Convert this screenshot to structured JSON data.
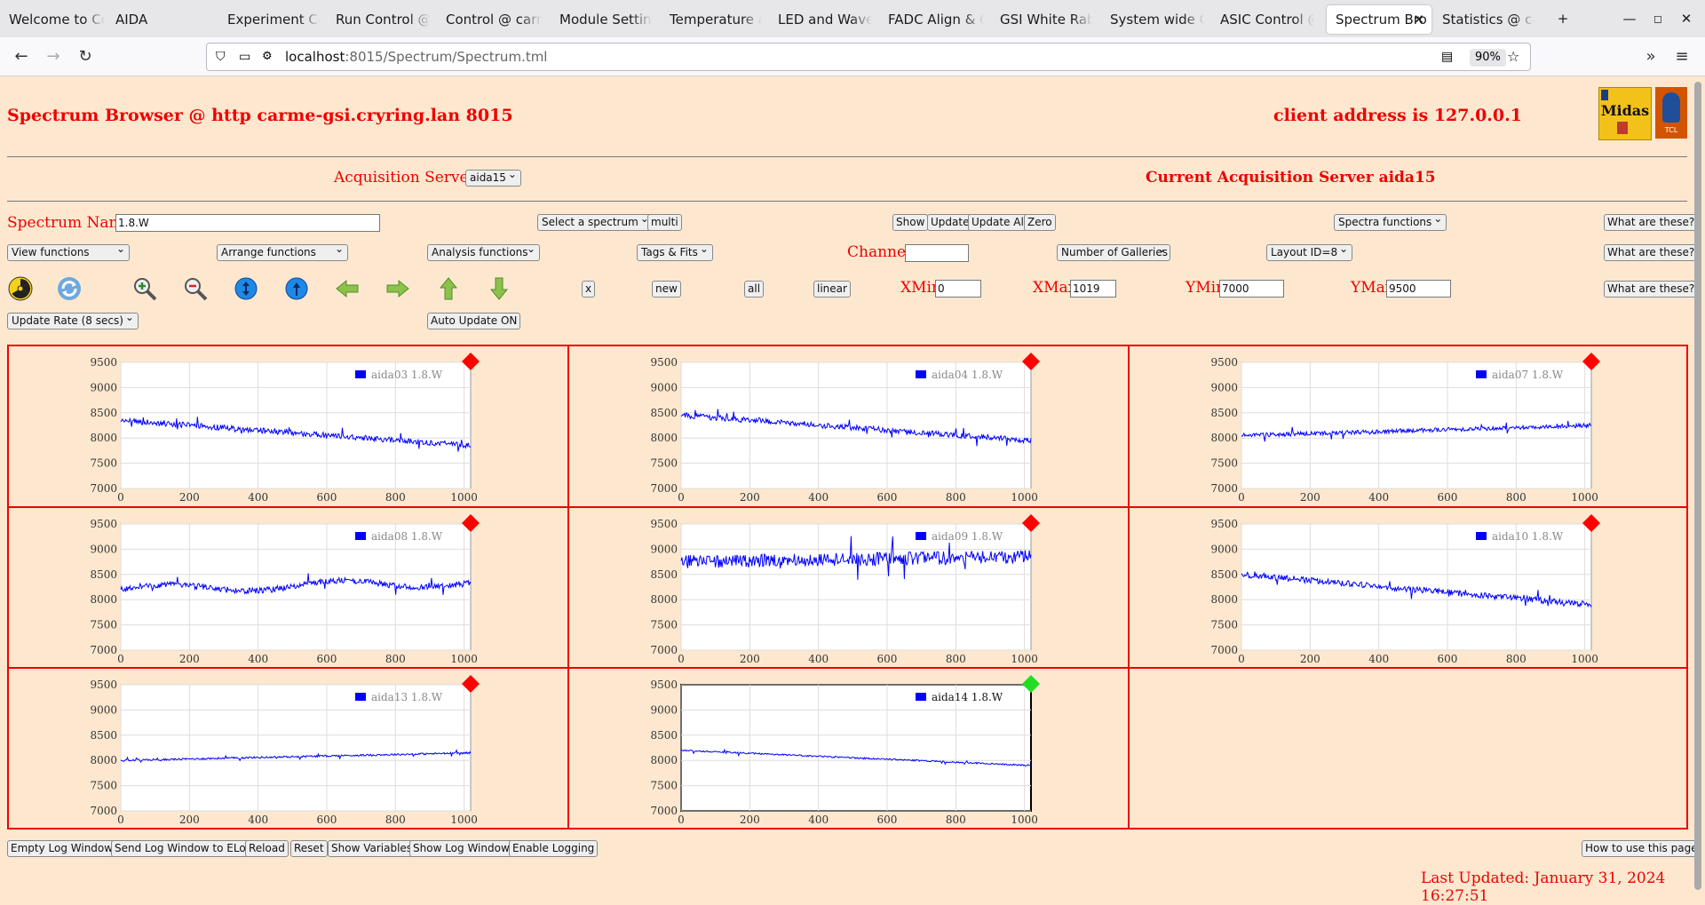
{
  "browser": {
    "tabs": [
      {
        "label": "Welcome to Ce",
        "active": false
      },
      {
        "label": "AIDA",
        "active": false
      },
      {
        "label": "Experiment Con",
        "active": false
      },
      {
        "label": "Run Control @ c",
        "active": false
      },
      {
        "label": "Control @ carm",
        "active": false
      },
      {
        "label": "Module Setting",
        "active": false
      },
      {
        "label": "Temperature an",
        "active": false
      },
      {
        "label": "LED and Wavefo",
        "active": false
      },
      {
        "label": "FADC Align & C",
        "active": false
      },
      {
        "label": "GSI White Rabb",
        "active": false
      },
      {
        "label": "System wide Ch",
        "active": false
      },
      {
        "label": "ASIC Control @",
        "active": false
      },
      {
        "label": "Spectrum Bro",
        "active": true
      },
      {
        "label": "Statistics @ car",
        "active": false
      }
    ],
    "new_tab": "+",
    "url_host": "localhost",
    "url_path": ":8015/Spectrum/Spectrum.tml",
    "zoom": "90%"
  },
  "header": {
    "title": "Spectrum Browser @ http carme-gsi.cryring.lan 8015",
    "client": "client address is 127.0.0.1",
    "logo1": "Midas",
    "logo2": "TCL"
  },
  "acq": {
    "label": "Acquisition Servers",
    "selected": "aida15",
    "current": "Current Acquisition Server aida15"
  },
  "row1": {
    "name_label": "Spectrum Name:",
    "name_value": "1.8.W",
    "select_spectrum": "Select a spectrum",
    "multi": "multi",
    "show": "Show",
    "update": "Update",
    "update_all": "Update All",
    "zero": "Zero",
    "spectra_functions": "Spectra functions",
    "what": "What are these?"
  },
  "row2": {
    "view": "View functions",
    "arrange": "Arrange functions",
    "analysis": "Analysis functions",
    "tags": "Tags & Fits",
    "channel_label": "Channel:",
    "channel_value": "",
    "galleries": "Number of Galleries",
    "layout": "Layout ID=8",
    "what": "What are these?"
  },
  "row3": {
    "x": "x",
    "new": "new",
    "all": "all",
    "linear": "linear",
    "xmin_label": "XMin",
    "xmin": "0",
    "xmax_label": "XMax",
    "xmax": "1019",
    "ymin_label": "YMin",
    "ymin": "7000",
    "ymax_label": "YMax",
    "ymax": "9500",
    "what": "What are these?"
  },
  "row4": {
    "update_rate": "Update Rate (8 secs)",
    "auto_update": "Auto Update ON"
  },
  "icons": [
    "radiation-icon",
    "refresh-icon",
    "zoom-in-icon",
    "zoom-out-icon",
    "expand-y-icon",
    "collapse-y-icon",
    "arrow-left-icon",
    "arrow-right-icon",
    "arrow-up-icon",
    "arrow-down-icon"
  ],
  "chart_data": [
    {
      "type": "line",
      "series": [
        {
          "name": "aida03 1.8.W",
          "pattern": "decline",
          "base_start": 8350,
          "base_end": 7850,
          "noise": 90
        }
      ],
      "xlim": [
        0,
        1019
      ],
      "ylim": [
        7000,
        9500
      ],
      "xticks": [
        0,
        200,
        400,
        600,
        800,
        1000
      ],
      "yticks": [
        7000,
        7500,
        8000,
        8500,
        9000,
        9500
      ],
      "status": "red",
      "color": "#0000ff"
    },
    {
      "type": "line",
      "series": [
        {
          "name": "aida04 1.8.W",
          "pattern": "decline",
          "base_start": 8450,
          "base_end": 7950,
          "noise": 90
        }
      ],
      "xlim": [
        0,
        1019
      ],
      "ylim": [
        7000,
        9500
      ],
      "xticks": [
        0,
        200,
        400,
        600,
        800,
        1000
      ],
      "yticks": [
        7000,
        7500,
        8000,
        8500,
        9000,
        9500
      ],
      "status": "red",
      "color": "#0000ff"
    },
    {
      "type": "line",
      "series": [
        {
          "name": "aida07 1.8.W",
          "pattern": "rise",
          "base_start": 8050,
          "base_end": 8250,
          "noise": 70
        }
      ],
      "xlim": [
        0,
        1019
      ],
      "ylim": [
        7000,
        9500
      ],
      "xticks": [
        0,
        200,
        400,
        600,
        800,
        1000
      ],
      "yticks": [
        7000,
        7500,
        8000,
        8500,
        9000,
        9500
      ],
      "status": "red",
      "color": "#0000ff"
    },
    {
      "type": "line",
      "series": [
        {
          "name": "aida08 1.8.W",
          "pattern": "wave",
          "base_start": 8200,
          "base_end": 8350,
          "noise": 100
        }
      ],
      "xlim": [
        0,
        1019
      ],
      "ylim": [
        7000,
        9500
      ],
      "xticks": [
        0,
        200,
        400,
        600,
        800,
        1000
      ],
      "yticks": [
        7000,
        7500,
        8000,
        8500,
        9000,
        9500
      ],
      "status": "red",
      "color": "#0000ff"
    },
    {
      "type": "line",
      "series": [
        {
          "name": "aida09 1.8.W",
          "pattern": "flat-noisy",
          "base_start": 8750,
          "base_end": 8850,
          "noise": 220
        }
      ],
      "xlim": [
        0,
        1019
      ],
      "ylim": [
        7000,
        9500
      ],
      "xticks": [
        0,
        200,
        400,
        600,
        800,
        1000
      ],
      "yticks": [
        7000,
        7500,
        8000,
        8500,
        9000,
        9500
      ],
      "status": "red",
      "color": "#0000ff"
    },
    {
      "type": "line",
      "series": [
        {
          "name": "aida10 1.8.W",
          "pattern": "decline",
          "base_start": 8500,
          "base_end": 7900,
          "noise": 100
        }
      ],
      "xlim": [
        0,
        1019
      ],
      "ylim": [
        7000,
        9500
      ],
      "xticks": [
        0,
        200,
        400,
        600,
        800,
        1000
      ],
      "yticks": [
        7000,
        7500,
        8000,
        8500,
        9000,
        9500
      ],
      "status": "red",
      "color": "#0000ff"
    },
    {
      "type": "line",
      "series": [
        {
          "name": "aida13 1.8.W",
          "pattern": "rise",
          "base_start": 8000,
          "base_end": 8150,
          "noise": 30
        }
      ],
      "xlim": [
        0,
        1019
      ],
      "ylim": [
        7000,
        9500
      ],
      "xticks": [
        0,
        200,
        400,
        600,
        800,
        1000
      ],
      "yticks": [
        7000,
        7500,
        8000,
        8500,
        9000,
        9500
      ],
      "status": "red",
      "color": "#0000ff"
    },
    {
      "type": "line",
      "series": [
        {
          "name": "aida14 1.8.W",
          "pattern": "decline",
          "base_start": 8200,
          "base_end": 7900,
          "noise": 25
        }
      ],
      "xlim": [
        0,
        1019
      ],
      "ylim": [
        7000,
        9500
      ],
      "xticks": [
        0,
        200,
        400,
        600,
        800,
        1000
      ],
      "yticks": [
        7000,
        7500,
        8000,
        8500,
        9000,
        9500
      ],
      "status": "green",
      "color": "#0000ff",
      "selected": true
    }
  ],
  "footer": {
    "buttons": [
      "Empty Log Window",
      "Send Log Window to ELog",
      "Reload",
      "Reset",
      "Show Variables",
      "Show Log Window",
      "Enable Logging"
    ],
    "help": "How to use this page",
    "last_updated": "Last Updated: January 31, 2024 16:27:51"
  }
}
